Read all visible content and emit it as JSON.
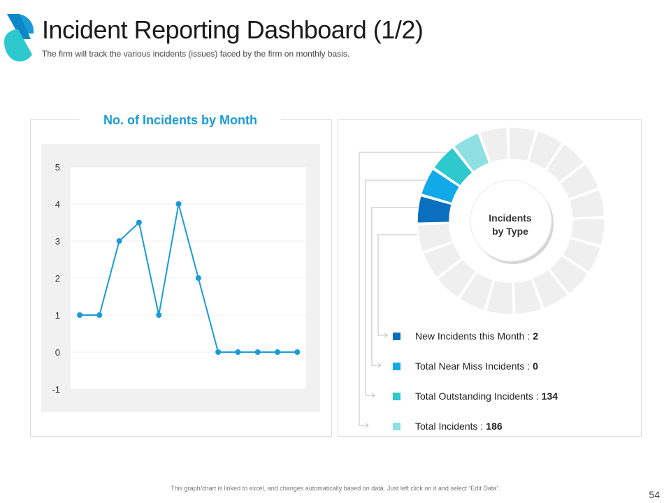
{
  "header": {
    "title": "Incident Reporting Dashboard (1/2)",
    "subtitle": "The firm will track the various  incidents (issues) faced by the firm on monthly basis."
  },
  "colors": {
    "accent": "#1a9bd7",
    "dark_blue": "#0b6fbf",
    "light_blue": "#12a9e8",
    "teal": "#2ec8cf",
    "light_teal": "#8fe0e2",
    "grey_segment": "#efefef"
  },
  "chart_data": [
    {
      "type": "line",
      "title": "No. of Incidents by Month",
      "xlabel": "",
      "ylabel": "",
      "ylim": [
        -1,
        5
      ],
      "y_ticks": [
        "5",
        "4",
        "3",
        "2",
        "1",
        "0",
        "-1"
      ],
      "grid": true,
      "series": [
        {
          "name": "Incidents",
          "values": [
            1,
            1,
            3,
            3.5,
            1,
            4,
            2,
            0,
            0,
            0,
            0,
            0
          ]
        }
      ]
    },
    {
      "type": "pie",
      "title": "Incidents by Type",
      "center_label": [
        "Incidents",
        "by Type"
      ],
      "segments_total": 20,
      "categories": [
        "New Incidents this Month",
        "Total Near Miss Incidents",
        "Total Outstanding Incidents",
        "Total Incidents"
      ],
      "values": [
        2,
        0,
        134,
        186
      ]
    }
  ],
  "legend": [
    {
      "label": "New Incidents this Month :",
      "value": "2",
      "color": "#0b6fbf"
    },
    {
      "label": "Total Near Miss Incidents :",
      "value": "0",
      "color": "#12a9e8"
    },
    {
      "label": "Total Outstanding Incidents :",
      "value": "134",
      "color": "#2ec8cf"
    },
    {
      "label": "Total Incidents :",
      "value": "186",
      "color": "#8fe0e2"
    }
  ],
  "footer": {
    "note": "This graph/chart is linked to excel, and changes automatically based on data. Just left click on it and select “Edit Data”.",
    "page_number": "54"
  }
}
